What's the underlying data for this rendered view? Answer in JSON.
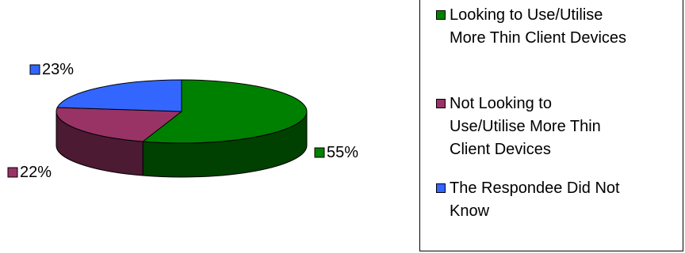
{
  "chart_data": {
    "type": "pie",
    "title": "",
    "slices": [
      {
        "label": "Looking to Use/Utilise More Thin Client Devices",
        "value": 55,
        "display": "55%",
        "color": "#008000",
        "side_color": "#004000"
      },
      {
        "label": "Not Looking to Use/Utilise More Thin Client Devices",
        "value": 22,
        "display": "22%",
        "color": "#993366",
        "side_color": "#4c1a33"
      },
      {
        "label": "The Respondee Did Not Know",
        "value": 23,
        "display": "23%",
        "color": "#3366ff",
        "side_color": "#1a3380"
      }
    ],
    "legend_position": "right",
    "three_d": true
  },
  "legend": [
    {
      "text": "Looking to Use/Utilise\nMore Thin Client Devices",
      "color": "#008000"
    },
    {
      "text": "Not Looking to\nUse/Utilise More Thin\nClient Devices",
      "color": "#993366"
    },
    {
      "text": "The Respondee Did Not\nKnow",
      "color": "#3366ff"
    }
  ]
}
